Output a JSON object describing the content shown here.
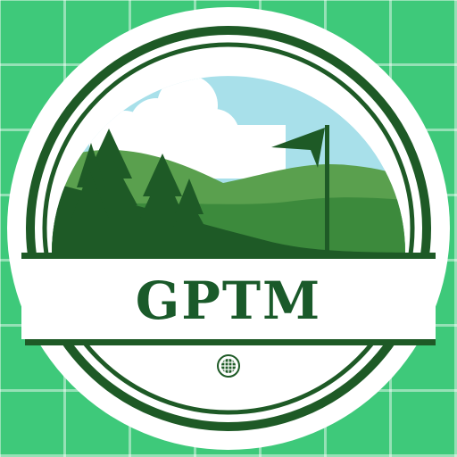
{
  "logo": {
    "text": "GPTM",
    "colors": {
      "background_green": "#3ec97a",
      "dark_green": "#1e5a26",
      "mid_green": "#3c8a3c",
      "light_green": "#5aa04e",
      "sky": "#a8e0ea",
      "cloud": "#ffffff",
      "text_green": "#1a5a2a"
    },
    "icons": [
      "pine-tree-icon",
      "golf-flag-icon",
      "golf-ball-icon"
    ]
  }
}
